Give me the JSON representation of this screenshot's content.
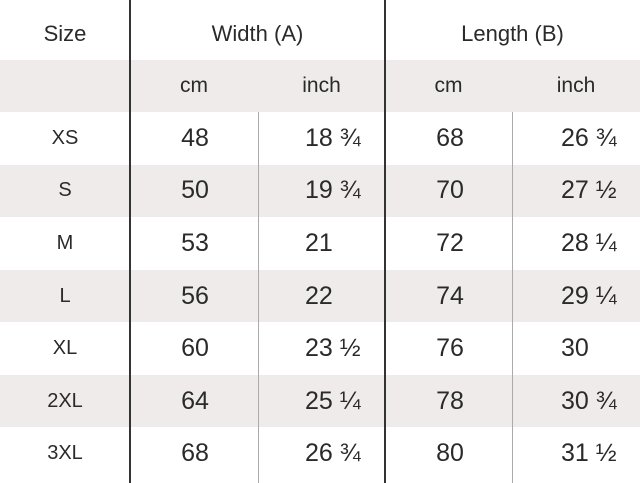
{
  "table": {
    "header": [
      "Size",
      "Width (A)",
      "Length (B)"
    ],
    "subheader": [
      "cm",
      "inch",
      "cm",
      "inch"
    ],
    "rows": [
      [
        "XS",
        48,
        "18 ¾",
        68,
        "26 ¾"
      ],
      [
        "S",
        50,
        "19 ¾",
        70,
        "27 ½"
      ],
      [
        "M",
        53,
        21,
        72,
        "28 ¼"
      ],
      [
        "L",
        56,
        22,
        74,
        "29 ¼"
      ],
      [
        "XL",
        60,
        "23 ½",
        76,
        30
      ],
      [
        "2XL",
        64,
        "25 ¼",
        78,
        "30 ¾"
      ],
      [
        "3XL",
        68,
        "26 ¾",
        80,
        "31 ½"
      ]
    ]
  }
}
